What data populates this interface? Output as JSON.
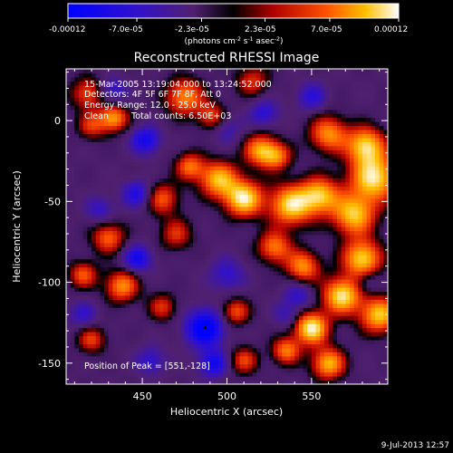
{
  "colorbar": {
    "tick_labels": [
      "-0.00012",
      "-7.0e-05",
      "-2.3e-05",
      "2.3e-05",
      "7.0e-05",
      "0.00012"
    ],
    "range": [
      -0.00012,
      0.00012
    ],
    "unit_main": "(photons cm",
    "unit_exp1": "-2",
    "unit_mid": " s",
    "unit_exp2": "-1",
    "unit_tail": " asec",
    "unit_exp3": "-2",
    "unit_close": ")",
    "colors": [
      "#0000ff",
      "#4020b0",
      "#601870",
      "#000000",
      "#c01010",
      "#ff6000",
      "#ffd000",
      "#ffffff"
    ]
  },
  "chart_data": {
    "type": "heatmap",
    "title": "Reconstructed RHESSI Image",
    "xlabel": "Heliocentric X (arcsec)",
    "ylabel": "Heliocentric Y (arcsec)",
    "xlim": [
      405,
      595
    ],
    "ylim": [
      -163,
      32
    ],
    "x_ticks": [
      450,
      500,
      550
    ],
    "y_ticks": [
      0,
      -50,
      -100,
      -150
    ],
    "peak_position": [
      551,
      -128
    ],
    "blobs": [
      {
        "x": 418,
        "y": 17,
        "v": 0.55,
        "s": 7
      },
      {
        "x": 433,
        "y": 2,
        "v": 0.75,
        "s": 6
      },
      {
        "x": 420,
        "y": -3,
        "v": 0.45,
        "s": 6
      },
      {
        "x": 475,
        "y": 15,
        "v": 0.7,
        "s": 8
      },
      {
        "x": 491,
        "y": 3,
        "v": 0.5,
        "s": 6
      },
      {
        "x": 515,
        "y": 25,
        "v": 0.45,
        "s": 7
      },
      {
        "x": 520,
        "y": -18,
        "v": 0.75,
        "s": 7
      },
      {
        "x": 530,
        "y": -22,
        "v": 0.55,
        "s": 6
      },
      {
        "x": 560,
        "y": -8,
        "v": 0.7,
        "s": 8
      },
      {
        "x": 582,
        "y": -15,
        "v": 0.85,
        "s": 8
      },
      {
        "x": 587,
        "y": -35,
        "v": 0.95,
        "s": 10
      },
      {
        "x": 575,
        "y": -58,
        "v": 0.85,
        "s": 9
      },
      {
        "x": 555,
        "y": -46,
        "v": 0.8,
        "s": 8
      },
      {
        "x": 538,
        "y": -52,
        "v": 0.9,
        "s": 9
      },
      {
        "x": 510,
        "y": -48,
        "v": 0.95,
        "s": 8
      },
      {
        "x": 495,
        "y": -36,
        "v": 0.8,
        "s": 8
      },
      {
        "x": 478,
        "y": -28,
        "v": 0.6,
        "s": 6
      },
      {
        "x": 462,
        "y": -48,
        "v": 0.55,
        "s": 7
      },
      {
        "x": 470,
        "y": -70,
        "v": 0.45,
        "s": 7
      },
      {
        "x": 430,
        "y": -72,
        "v": 0.6,
        "s": 7
      },
      {
        "x": 415,
        "y": -95,
        "v": 0.55,
        "s": 6
      },
      {
        "x": 438,
        "y": -102,
        "v": 0.7,
        "s": 7
      },
      {
        "x": 528,
        "y": -78,
        "v": 0.65,
        "s": 7
      },
      {
        "x": 545,
        "y": -90,
        "v": 0.7,
        "s": 7
      },
      {
        "x": 580,
        "y": -85,
        "v": 0.9,
        "s": 8
      },
      {
        "x": 568,
        "y": -108,
        "v": 0.95,
        "s": 8
      },
      {
        "x": 590,
        "y": -120,
        "v": 0.85,
        "s": 8
      },
      {
        "x": 550,
        "y": -128,
        "v": 1.0,
        "s": 7
      },
      {
        "x": 560,
        "y": -150,
        "v": 0.8,
        "s": 7
      },
      {
        "x": 535,
        "y": -142,
        "v": 0.65,
        "s": 6
      },
      {
        "x": 505,
        "y": -118,
        "v": 0.55,
        "s": 6
      },
      {
        "x": 510,
        "y": -148,
        "v": 0.5,
        "s": 6
      },
      {
        "x": 462,
        "y": -115,
        "v": 0.45,
        "s": 6
      },
      {
        "x": 420,
        "y": -135,
        "v": 0.5,
        "s": 6
      },
      {
        "x": 432,
        "y": 18,
        "v": -0.5,
        "s": 6
      },
      {
        "x": 452,
        "y": -12,
        "v": -0.7,
        "s": 6
      },
      {
        "x": 447,
        "y": -45,
        "v": -0.6,
        "s": 6
      },
      {
        "x": 425,
        "y": -55,
        "v": -0.4,
        "s": 6
      },
      {
        "x": 447,
        "y": -85,
        "v": -0.7,
        "s": 6
      },
      {
        "x": 415,
        "y": -120,
        "v": -0.4,
        "s": 6
      },
      {
        "x": 487,
        "y": -128,
        "v": -1.0,
        "s": 8
      },
      {
        "x": 492,
        "y": -150,
        "v": -0.7,
        "s": 6
      },
      {
        "x": 455,
        "y": -148,
        "v": -0.45,
        "s": 6
      },
      {
        "x": 500,
        "y": -95,
        "v": -0.45,
        "s": 7
      },
      {
        "x": 522,
        "y": 5,
        "v": -0.5,
        "s": 6
      },
      {
        "x": 500,
        "y": -5,
        "v": -0.35,
        "s": 6
      },
      {
        "x": 550,
        "y": 15,
        "v": -0.5,
        "s": 6
      },
      {
        "x": 542,
        "y": -108,
        "v": -0.45,
        "s": 6
      },
      {
        "x": 535,
        "y": -120,
        "v": -0.35,
        "s": 5
      },
      {
        "x": 583,
        "y": -100,
        "v": -0.3,
        "s": 5
      }
    ]
  },
  "info": {
    "time_range": "15-Mar-2005 13:19:04.000 to 13:24:52.000",
    "detectors": "Detectors: 4F 5F 6F 7F 8F, Att 0",
    "energy_range": "Energy Range: 12.0 - 25.0 keV",
    "algorithm": "Clean",
    "total_counts": "Total counts: 6.50E+03",
    "peak_label": "Position of Peak = [551,-128]"
  },
  "footer": {
    "timestamp": "9-Jul-2013 12:57"
  }
}
